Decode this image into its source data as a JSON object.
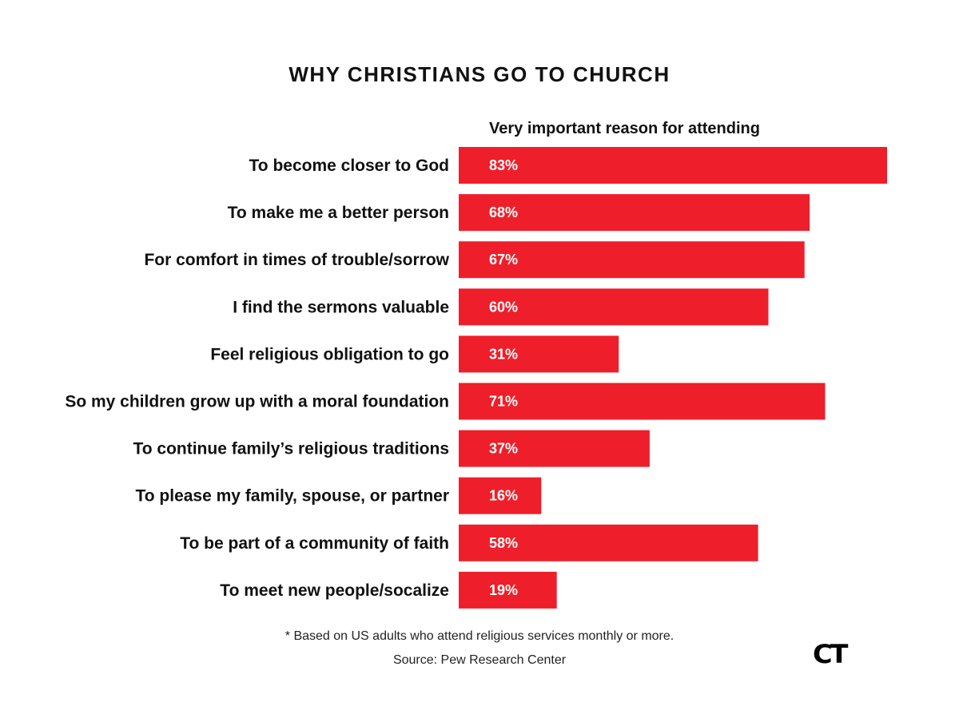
{
  "colors": {
    "bar": "#ee1f2a",
    "text": "#111111",
    "value_label": "#ffffff"
  },
  "chart_data": {
    "type": "bar",
    "orientation": "horizontal",
    "title": "WHY CHRISTIANS GO TO CHURCH",
    "subtitle": "Very important reason for attending",
    "categories": [
      "To become closer to God",
      "To make me a better person",
      "For comfort in times of trouble/sorrow",
      "I find the sermons valuable",
      "Feel religious obligation to go",
      "So my children grow up with a moral foundation",
      "To continue family’s religious traditions",
      "To please my family, spouse, or partner",
      "To be part of a community of faith",
      "To meet new people/socalize"
    ],
    "values": [
      83,
      68,
      67,
      60,
      31,
      71,
      37,
      16,
      58,
      19
    ],
    "value_labels": [
      "83%",
      "68%",
      "67%",
      "60%",
      "31%",
      "71%",
      "37%",
      "16%",
      "58%",
      "19%"
    ],
    "xlim": [
      0,
      100
    ],
    "grid": false,
    "legend": "none"
  },
  "footnote": "* Based on US adults who attend religious services monthly or more.",
  "source": "Source: Pew Research Center",
  "logo_text": "CT"
}
